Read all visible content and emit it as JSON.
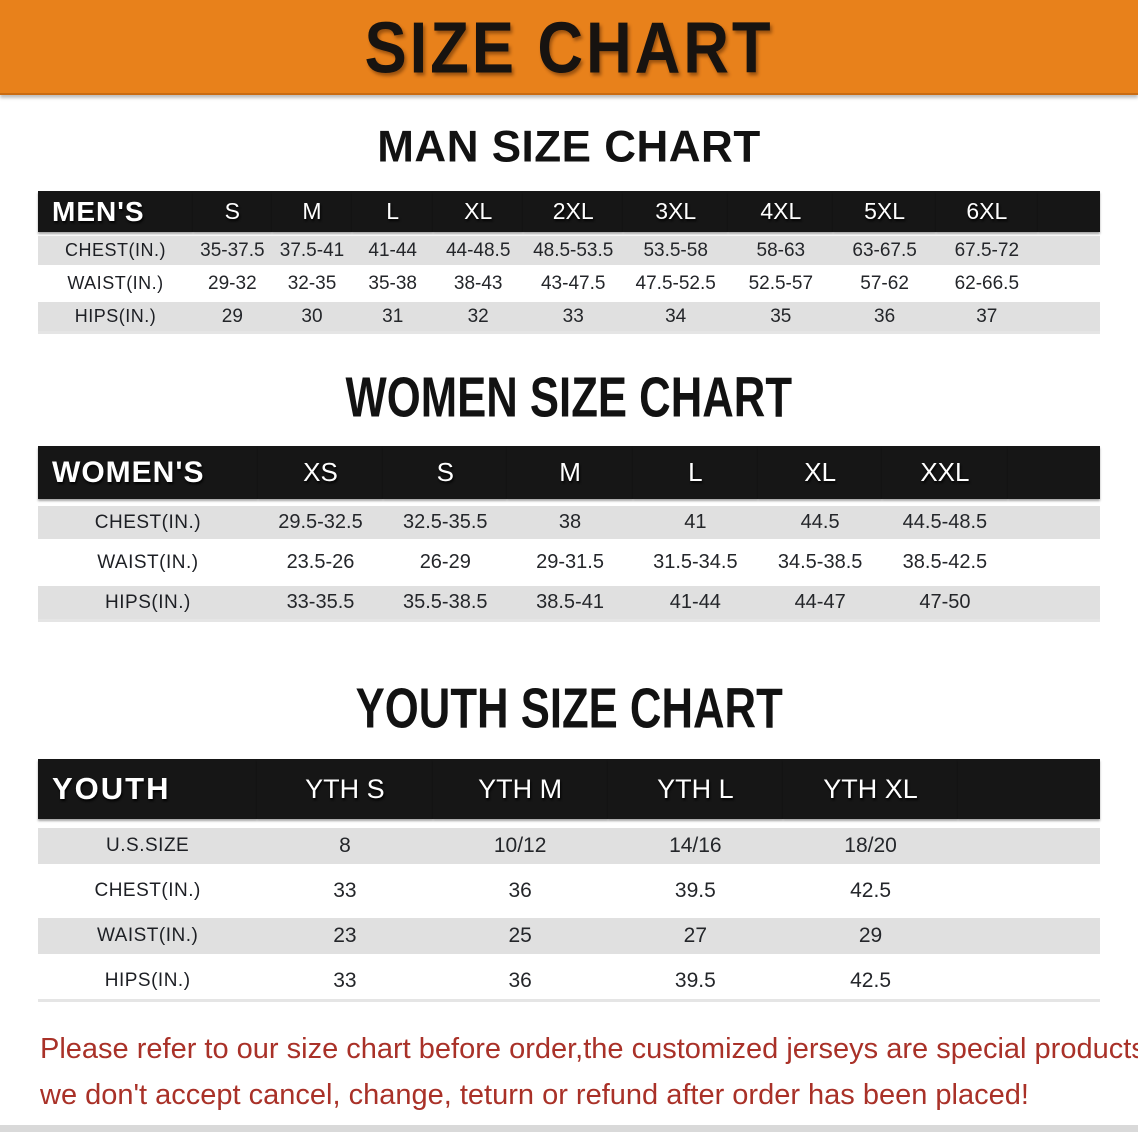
{
  "banner": {
    "title": "SIZE CHART"
  },
  "colors": {
    "banner-bg": "#E8811B",
    "bar-bg": "#161616",
    "stripe": "#E0E0E0",
    "warn-red": "#A93128"
  },
  "sections": [
    {
      "heading": "MAN SIZE CHART",
      "group_label": "MEN'S",
      "columns": [
        "S",
        "M",
        "L",
        "XL",
        "2XL",
        "3XL",
        "4XL",
        "5XL",
        "6XL"
      ],
      "rows": [
        {
          "label": "CHEST(IN.)",
          "values": [
            "35-37.5",
            "37.5-41",
            "41-44",
            "44-48.5",
            "48.5-53.5",
            "53.5-58",
            "58-63",
            "63-67.5",
            "67.5-72"
          ]
        },
        {
          "label": "WAIST(IN.)",
          "values": [
            "29-32",
            "32-35",
            "35-38",
            "38-43",
            "43-47.5",
            "47.5-52.5",
            "52.5-57",
            "57-62",
            "62-66.5"
          ]
        },
        {
          "label": "HIPS(IN.)",
          "values": [
            "29",
            "30",
            "31",
            "32",
            "33",
            "34",
            "35",
            "36",
            "37"
          ]
        }
      ]
    },
    {
      "heading": "WOMEN SIZE CHART",
      "group_label": "WOMEN'S",
      "columns": [
        "XS",
        "S",
        "M",
        "L",
        "XL",
        "XXL"
      ],
      "rows": [
        {
          "label": "CHEST(IN.)",
          "values": [
            "29.5-32.5",
            "32.5-35.5",
            "38",
            "41",
            "44.5",
            "44.5-48.5"
          ]
        },
        {
          "label": "WAIST(IN.)",
          "values": [
            "23.5-26",
            "26-29",
            "29-31.5",
            "31.5-34.5",
            "34.5-38.5",
            "38.5-42.5"
          ]
        },
        {
          "label": "HIPS(IN.)",
          "values": [
            "33-35.5",
            "35.5-38.5",
            "38.5-41",
            "41-44",
            "44-47",
            "47-50"
          ]
        }
      ]
    },
    {
      "heading": "YOUTH SIZE CHART",
      "group_label": "YOUTH",
      "columns": [
        "YTH S",
        "YTH M",
        "YTH L",
        "YTH XL"
      ],
      "rows": [
        {
          "label": "U.S.SIZE",
          "values": [
            "8",
            "10/12",
            "14/16",
            "18/20"
          ]
        },
        {
          "label": "CHEST(IN.)",
          "values": [
            "33",
            "36",
            "39.5",
            "42.5"
          ]
        },
        {
          "label": "WAIST(IN.)",
          "values": [
            "23",
            "25",
            "27",
            "29"
          ]
        },
        {
          "label": "HIPS(IN.)",
          "values": [
            "33",
            "36",
            "39.5",
            "42.5"
          ]
        }
      ]
    }
  ],
  "disclaimer": {
    "line1": "Please refer to our size chart before order,the customized jerseys are special products,",
    "line2": "we don't accept cancel, change, teturn or refund after order has been placed!"
  }
}
